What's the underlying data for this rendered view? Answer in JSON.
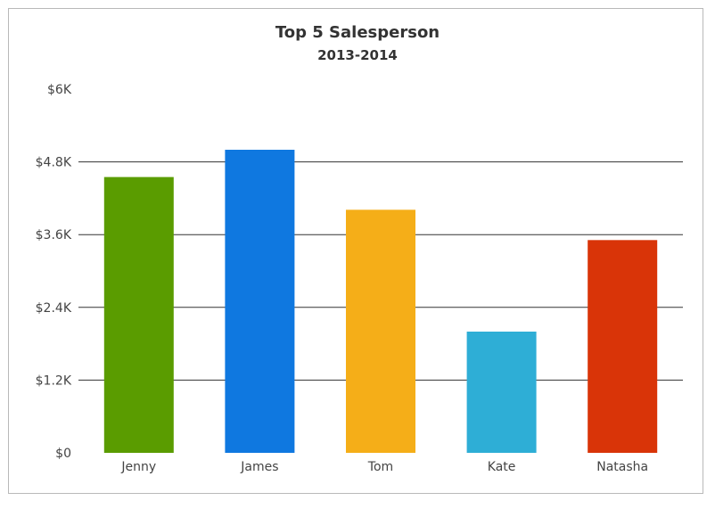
{
  "chart_data": {
    "type": "bar",
    "title": "Top 5 Salesperson",
    "subtitle": "2013-2014",
    "categories": [
      "Jenny",
      "James",
      "Tom",
      "Kate",
      "Natasha"
    ],
    "values": [
      4550,
      5000,
      4010,
      2000,
      3510
    ],
    "bar_colors": [
      "#5a9c00",
      "#0f78e0",
      "#f5ae18",
      "#2eaed6",
      "#d93408"
    ],
    "ylim": [
      0,
      6000
    ],
    "yticks": [
      0,
      1200,
      2400,
      3600,
      4800,
      6000
    ],
    "ytick_labels": [
      "$0",
      "$1.2K",
      "$2.4K",
      "$3.6K",
      "$4.8K",
      "$6K"
    ],
    "grid": true,
    "gridline_color": "#333333",
    "xlabel": "",
    "ylabel": ""
  }
}
